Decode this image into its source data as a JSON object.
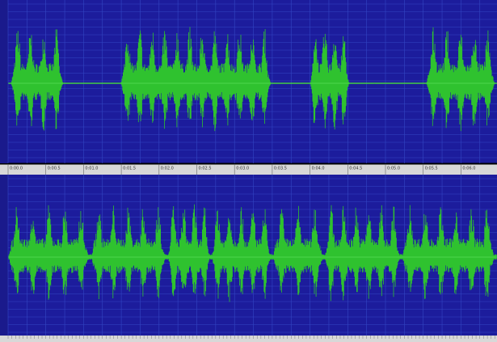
{
  "ruler": {
    "labels": [
      "0:00.0",
      "0:00.5",
      "0:01.0",
      "0:01.5",
      "0:02.0",
      "0:02.5",
      "0:03.0",
      "0:03.5",
      "0:04.0",
      "0:04.5",
      "0:05.0",
      "0:05.5",
      "0:06.0"
    ]
  }
}
